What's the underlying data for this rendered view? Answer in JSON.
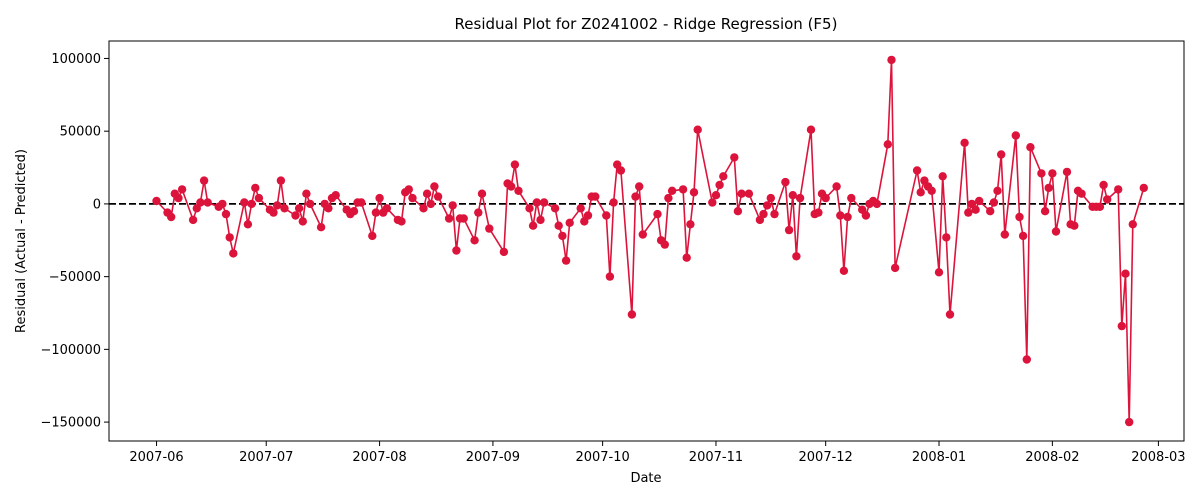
{
  "chart_data": {
    "type": "line",
    "title": "Residual Plot for Z0241002 - Ridge Regression (F5)",
    "xlabel": "Date",
    "ylabel": "Residual (Actual - Predicted)",
    "x_ticks": [
      "2007-06",
      "2007-07",
      "2007-08",
      "2007-09",
      "2007-10",
      "2007-11",
      "2007-12",
      "2008-01",
      "2008-02",
      "2008-03"
    ],
    "y_ticks": [
      100000,
      50000,
      0,
      -50000,
      -100000,
      -150000
    ],
    "y_tick_labels": [
      "100000",
      "50000",
      "0",
      "−50000",
      "−100000",
      "−150000"
    ],
    "xlim": [
      "2007-05-19",
      "2008-03-08"
    ],
    "ylim": [
      -163000,
      112000
    ],
    "reference_line": {
      "y": 0,
      "style": "dashed",
      "color": "#000000"
    },
    "grid": false,
    "series": [
      {
        "color": "#dc143c",
        "marker": "circle",
        "points": [
          [
            "2007-06-01",
            2000
          ],
          [
            "2007-06-04",
            -6000
          ],
          [
            "2007-06-05",
            -9000
          ],
          [
            "2007-06-06",
            7000
          ],
          [
            "2007-06-07",
            4000
          ],
          [
            "2007-06-08",
            10000
          ],
          [
            "2007-06-11",
            -11000
          ],
          [
            "2007-06-12",
            -3000
          ],
          [
            "2007-06-13",
            1000
          ],
          [
            "2007-06-14",
            16000
          ],
          [
            "2007-06-15",
            1000
          ],
          [
            "2007-06-18",
            -2000
          ],
          [
            "2007-06-19",
            0
          ],
          [
            "2007-06-20",
            -7000
          ],
          [
            "2007-06-21",
            -23000
          ],
          [
            "2007-06-22",
            -34000
          ],
          [
            "2007-06-25",
            1000
          ],
          [
            "2007-06-26",
            -14000
          ],
          [
            "2007-06-27",
            0
          ],
          [
            "2007-06-28",
            11000
          ],
          [
            "2007-06-29",
            4000
          ],
          [
            "2007-07-02",
            -4000
          ],
          [
            "2007-07-03",
            -6000
          ],
          [
            "2007-07-04",
            -1000
          ],
          [
            "2007-07-05",
            16000
          ],
          [
            "2007-07-06",
            -3000
          ],
          [
            "2007-07-09",
            -8000
          ],
          [
            "2007-07-10",
            -3000
          ],
          [
            "2007-07-11",
            -12000
          ],
          [
            "2007-07-12",
            7000
          ],
          [
            "2007-07-13",
            0
          ],
          [
            "2007-07-16",
            -16000
          ],
          [
            "2007-07-17",
            0
          ],
          [
            "2007-07-18",
            -3000
          ],
          [
            "2007-07-19",
            4000
          ],
          [
            "2007-07-20",
            6000
          ],
          [
            "2007-07-23",
            -4000
          ],
          [
            "2007-07-24",
            -7000
          ],
          [
            "2007-07-25",
            -5000
          ],
          [
            "2007-07-26",
            1000
          ],
          [
            "2007-07-27",
            1000
          ],
          [
            "2007-07-30",
            -22000
          ],
          [
            "2007-07-31",
            -6000
          ],
          [
            "2007-08-01",
            4000
          ],
          [
            "2007-08-02",
            -6000
          ],
          [
            "2007-08-03",
            -3000
          ],
          [
            "2007-08-06",
            -11000
          ],
          [
            "2007-08-07",
            -12000
          ],
          [
            "2007-08-08",
            8000
          ],
          [
            "2007-08-09",
            10000
          ],
          [
            "2007-08-10",
            4000
          ],
          [
            "2007-08-13",
            -3000
          ],
          [
            "2007-08-14",
            7000
          ],
          [
            "2007-08-15",
            0
          ],
          [
            "2007-08-16",
            12000
          ],
          [
            "2007-08-17",
            5000
          ],
          [
            "2007-08-20",
            -10000
          ],
          [
            "2007-08-21",
            -1000
          ],
          [
            "2007-08-22",
            -32000
          ],
          [
            "2007-08-23",
            -10000
          ],
          [
            "2007-08-24",
            -10000
          ],
          [
            "2007-08-27",
            -25000
          ],
          [
            "2007-08-28",
            -6000
          ],
          [
            "2007-08-29",
            7000
          ],
          [
            "2007-08-31",
            -17000
          ],
          [
            "2007-09-04",
            -33000
          ],
          [
            "2007-09-05",
            14000
          ],
          [
            "2007-09-06",
            12000
          ],
          [
            "2007-09-07",
            27000
          ],
          [
            "2007-09-08",
            9000
          ],
          [
            "2007-09-11",
            -3000
          ],
          [
            "2007-09-12",
            -15000
          ],
          [
            "2007-09-13",
            1000
          ],
          [
            "2007-09-14",
            -11000
          ],
          [
            "2007-09-15",
            1000
          ],
          [
            "2007-09-18",
            -3000
          ],
          [
            "2007-09-19",
            -15000
          ],
          [
            "2007-09-20",
            -22000
          ],
          [
            "2007-09-21",
            -39000
          ],
          [
            "2007-09-22",
            -13000
          ],
          [
            "2007-09-25",
            -3000
          ],
          [
            "2007-09-26",
            -12000
          ],
          [
            "2007-09-27",
            -8000
          ],
          [
            "2007-09-28",
            5000
          ],
          [
            "2007-09-29",
            5000
          ],
          [
            "2007-10-02",
            -8000
          ],
          [
            "2007-10-03",
            -50000
          ],
          [
            "2007-10-04",
            1000
          ],
          [
            "2007-10-05",
            27000
          ],
          [
            "2007-10-06",
            23000
          ],
          [
            "2007-10-09",
            -76000
          ],
          [
            "2007-10-10",
            5000
          ],
          [
            "2007-10-11",
            12000
          ],
          [
            "2007-10-12",
            -21000
          ],
          [
            "2007-10-16",
            -7000
          ],
          [
            "2007-10-17",
            -25000
          ],
          [
            "2007-10-18",
            -28000
          ],
          [
            "2007-10-19",
            4000
          ],
          [
            "2007-10-20",
            9000
          ],
          [
            "2007-10-23",
            10000
          ],
          [
            "2007-10-24",
            -37000
          ],
          [
            "2007-10-25",
            -14000
          ],
          [
            "2007-10-26",
            8000
          ],
          [
            "2007-10-27",
            51000
          ],
          [
            "2007-10-31",
            1000
          ],
          [
            "2007-11-01",
            6000
          ],
          [
            "2007-11-02",
            13000
          ],
          [
            "2007-11-03",
            19000
          ],
          [
            "2007-11-06",
            32000
          ],
          [
            "2007-11-07",
            -5000
          ],
          [
            "2007-11-08",
            7000
          ],
          [
            "2007-11-10",
            7000
          ],
          [
            "2007-11-13",
            -11000
          ],
          [
            "2007-11-14",
            -7000
          ],
          [
            "2007-11-15",
            -1000
          ],
          [
            "2007-11-16",
            4000
          ],
          [
            "2007-11-17",
            -7000
          ],
          [
            "2007-11-20",
            15000
          ],
          [
            "2007-11-21",
            -18000
          ],
          [
            "2007-11-22",
            6000
          ],
          [
            "2007-11-23",
            -36000
          ],
          [
            "2007-11-24",
            4000
          ],
          [
            "2007-11-27",
            51000
          ],
          [
            "2007-11-28",
            -7000
          ],
          [
            "2007-11-29",
            -6000
          ],
          [
            "2007-11-30",
            7000
          ],
          [
            "2007-12-01",
            4000
          ],
          [
            "2007-12-04",
            12000
          ],
          [
            "2007-12-05",
            -8000
          ],
          [
            "2007-12-06",
            -46000
          ],
          [
            "2007-12-07",
            -9000
          ],
          [
            "2007-12-08",
            4000
          ],
          [
            "2007-12-11",
            -4000
          ],
          [
            "2007-12-12",
            -8000
          ],
          [
            "2007-12-13",
            0
          ],
          [
            "2007-12-14",
            2000
          ],
          [
            "2007-12-15",
            0
          ],
          [
            "2007-12-18",
            41000
          ],
          [
            "2007-12-19",
            99000
          ],
          [
            "2007-12-20",
            -44000
          ],
          [
            "2007-12-26",
            23000
          ],
          [
            "2007-12-27",
            8000
          ],
          [
            "2007-12-28",
            16000
          ],
          [
            "2007-12-29",
            12000
          ],
          [
            "2007-12-30",
            9000
          ],
          [
            "2008-01-01",
            -47000
          ],
          [
            "2008-01-02",
            19000
          ],
          [
            "2008-01-03",
            -23000
          ],
          [
            "2008-01-04",
            -76000
          ],
          [
            "2008-01-08",
            42000
          ],
          [
            "2008-01-09",
            -6000
          ],
          [
            "2008-01-10",
            0
          ],
          [
            "2008-01-11",
            -4000
          ],
          [
            "2008-01-12",
            2000
          ],
          [
            "2008-01-15",
            -5000
          ],
          [
            "2008-01-16",
            1000
          ],
          [
            "2008-01-17",
            9000
          ],
          [
            "2008-01-18",
            34000
          ],
          [
            "2008-01-19",
            -21000
          ],
          [
            "2008-01-22",
            47000
          ],
          [
            "2008-01-23",
            -9000
          ],
          [
            "2008-01-24",
            -22000
          ],
          [
            "2008-01-25",
            -107000
          ],
          [
            "2008-01-26",
            39000
          ],
          [
            "2008-01-29",
            21000
          ],
          [
            "2008-01-30",
            -5000
          ],
          [
            "2008-01-31",
            11000
          ],
          [
            "2008-02-01",
            21000
          ],
          [
            "2008-02-02",
            -19000
          ],
          [
            "2008-02-05",
            22000
          ],
          [
            "2008-02-06",
            -14000
          ],
          [
            "2008-02-07",
            -15000
          ],
          [
            "2008-02-08",
            9000
          ],
          [
            "2008-02-09",
            7000
          ],
          [
            "2008-02-12",
            -2000
          ],
          [
            "2008-02-13",
            -2000
          ],
          [
            "2008-02-14",
            -2000
          ],
          [
            "2008-02-15",
            13000
          ],
          [
            "2008-02-16",
            3000
          ],
          [
            "2008-02-19",
            10000
          ],
          [
            "2008-02-20",
            -84000
          ],
          [
            "2008-02-21",
            -48000
          ],
          [
            "2008-02-22",
            -150000
          ],
          [
            "2008-02-23",
            -14000
          ],
          [
            "2008-02-26",
            11000
          ]
        ]
      }
    ]
  }
}
